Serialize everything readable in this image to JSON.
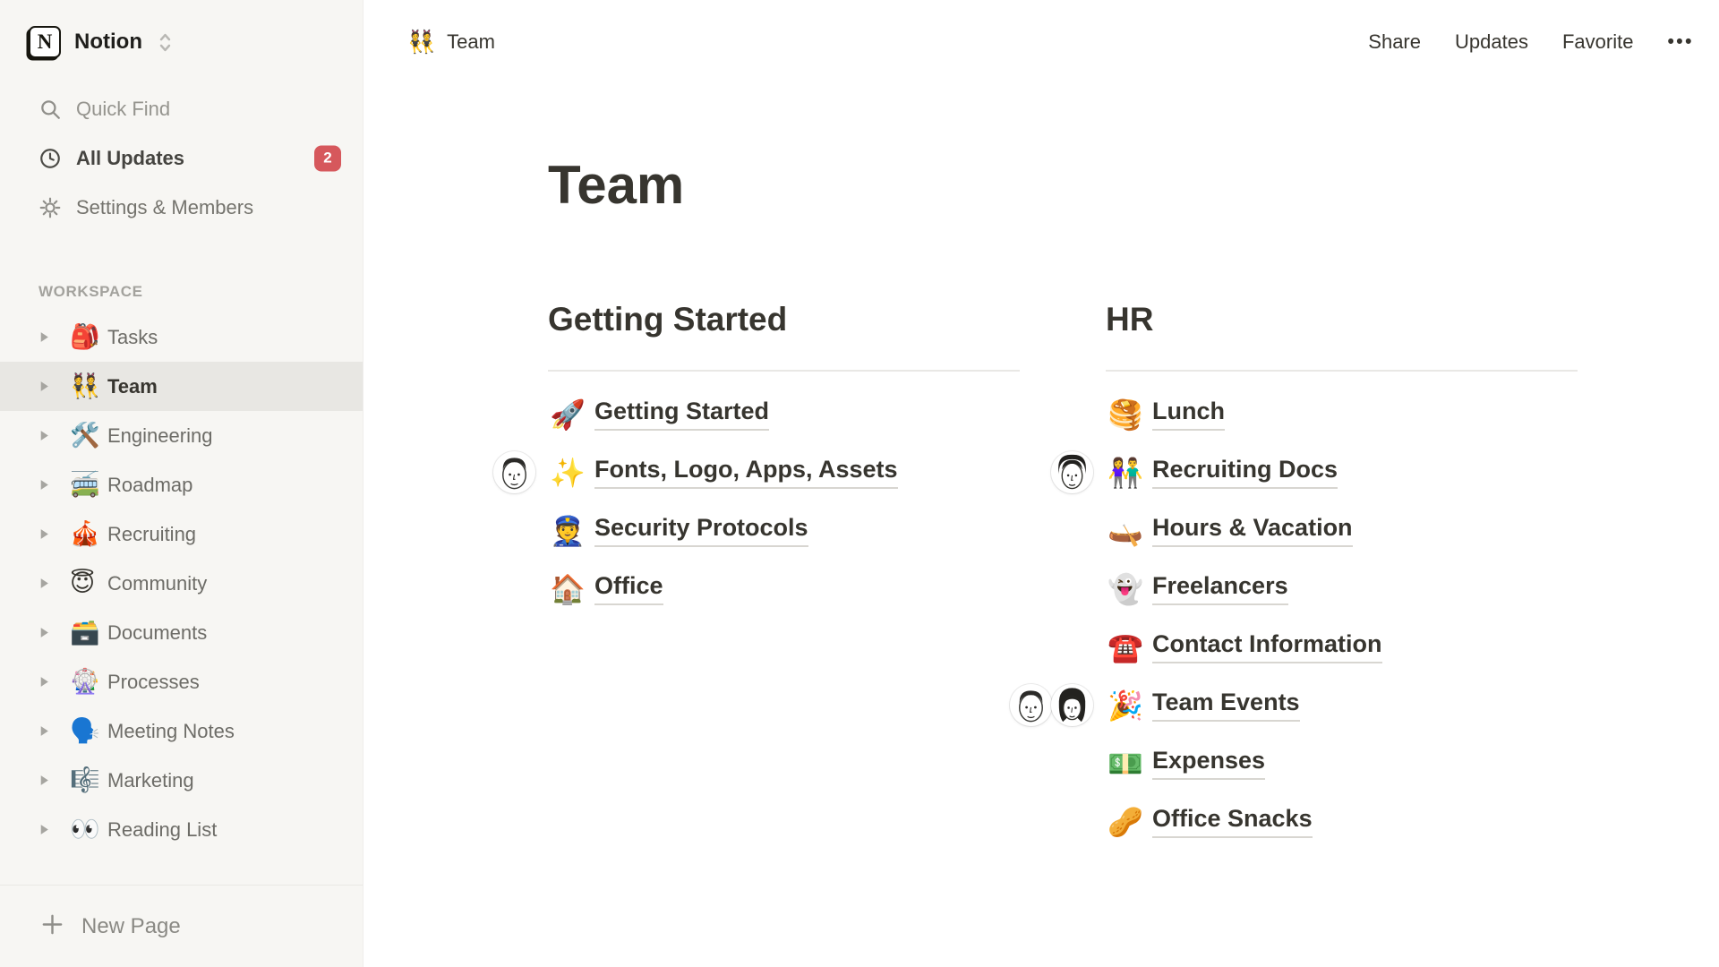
{
  "colors": {
    "sidebar_bg": "#f7f6f3",
    "selected_row_bg": "#e8e7e3",
    "badge_red": "#d6585c",
    "text_primary": "#37352f"
  },
  "sidebar": {
    "logo_letter": "N",
    "workspace_name": "Notion",
    "top_items": [
      {
        "label": "Quick Find",
        "icon": "search-icon"
      },
      {
        "label": "All Updates",
        "icon": "clock-icon",
        "badge": "2"
      },
      {
        "label": "Settings & Members",
        "icon": "gear-icon"
      }
    ],
    "section_label": "WORKSPACE",
    "items": [
      {
        "emoji": "🎒",
        "label": "Tasks",
        "selected": false
      },
      {
        "emoji": "👯",
        "label": "Team",
        "selected": true
      },
      {
        "emoji": "🛠️",
        "label": "Engineering",
        "selected": false
      },
      {
        "emoji": "🚎",
        "label": "Roadmap",
        "selected": false
      },
      {
        "emoji": "🎪",
        "label": "Recruiting",
        "selected": false
      },
      {
        "emoji": "😇",
        "label": "Community",
        "selected": false
      },
      {
        "emoji": "🗃️",
        "label": "Documents",
        "selected": false
      },
      {
        "emoji": "🎡",
        "label": "Processes",
        "selected": false
      },
      {
        "emoji": "🗣️",
        "label": "Meeting Notes",
        "selected": false
      },
      {
        "emoji": "🎼",
        "label": "Marketing",
        "selected": false
      },
      {
        "emoji": "👀",
        "label": "Reading List",
        "selected": false
      }
    ],
    "new_page_label": "New Page"
  },
  "topbar": {
    "breadcrumb": {
      "emoji": "👯",
      "label": "Team"
    },
    "actions": [
      "Share",
      "Updates",
      "Favorite"
    ],
    "more_icon": "•••"
  },
  "page": {
    "title": "Team",
    "columns": [
      {
        "heading": "Getting Started",
        "items": [
          {
            "emoji": "🚀",
            "label": "Getting Started",
            "avatars": []
          },
          {
            "emoji": "✨",
            "label": "Fonts, Logo, Apps, Assets",
            "avatars": [
              "man"
            ]
          },
          {
            "emoji": "👮",
            "label": "Security Protocols",
            "avatars": []
          },
          {
            "emoji": "🏠",
            "label": "Office",
            "avatars": []
          }
        ]
      },
      {
        "heading": "HR",
        "items": [
          {
            "emoji": "🥞",
            "label": "Lunch",
            "avatars": []
          },
          {
            "emoji": "👫",
            "label": "Recruiting Docs",
            "avatars": [
              "man-bighair"
            ]
          },
          {
            "emoji": "🛶",
            "label": "Hours & Vacation",
            "avatars": []
          },
          {
            "emoji": "👻",
            "label": "Freelancers",
            "avatars": []
          },
          {
            "emoji": "☎️",
            "label": "Contact Information",
            "avatars": []
          },
          {
            "emoji": "🎉",
            "label": "Team Events",
            "avatars": [
              "man",
              "woman"
            ]
          },
          {
            "emoji": "💵",
            "label": "Expenses",
            "avatars": []
          },
          {
            "emoji": "🥜",
            "label": "Office Snacks",
            "avatars": []
          }
        ]
      }
    ]
  }
}
